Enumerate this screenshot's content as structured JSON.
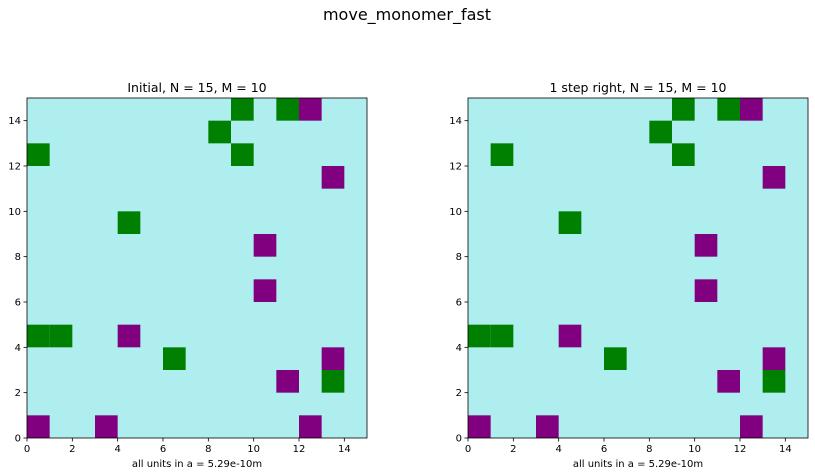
{
  "figure": {
    "suptitle": "move_monomer_fast",
    "background": "#ffffff"
  },
  "chart_data": [
    {
      "type": "heatmap",
      "title": "Initial, N = 15, M = 10",
      "xlabel": "all units in a = 5.29e-10m",
      "ylabel": "",
      "xlim": [
        0,
        15
      ],
      "ylim": [
        0,
        15
      ],
      "xticks": [
        0,
        2,
        4,
        6,
        8,
        10,
        12,
        14
      ],
      "yticks": [
        0,
        2,
        4,
        6,
        8,
        10,
        12,
        14
      ],
      "grid": false,
      "colors": {
        "empty": "#afeeee",
        "green": "#008000",
        "purple": "#800080"
      },
      "cells": [
        {
          "x": 9,
          "y": 14,
          "color": "green"
        },
        {
          "x": 11,
          "y": 14,
          "color": "green"
        },
        {
          "x": 12,
          "y": 14,
          "color": "purple"
        },
        {
          "x": 8,
          "y": 13,
          "color": "green"
        },
        {
          "x": 0,
          "y": 12,
          "color": "green"
        },
        {
          "x": 9,
          "y": 12,
          "color": "green"
        },
        {
          "x": 13,
          "y": 11,
          "color": "purple"
        },
        {
          "x": 4,
          "y": 9,
          "color": "green"
        },
        {
          "x": 10,
          "y": 8,
          "color": "purple"
        },
        {
          "x": 10,
          "y": 6,
          "color": "purple"
        },
        {
          "x": 0,
          "y": 4,
          "color": "green"
        },
        {
          "x": 1,
          "y": 4,
          "color": "green"
        },
        {
          "x": 4,
          "y": 4,
          "color": "purple"
        },
        {
          "x": 6,
          "y": 3,
          "color": "green"
        },
        {
          "x": 13,
          "y": 3,
          "color": "purple"
        },
        {
          "x": 11,
          "y": 2,
          "color": "purple"
        },
        {
          "x": 13,
          "y": 2,
          "color": "green"
        },
        {
          "x": 0,
          "y": 0,
          "color": "purple"
        },
        {
          "x": 3,
          "y": 0,
          "color": "purple"
        },
        {
          "x": 12,
          "y": 0,
          "color": "purple"
        }
      ]
    },
    {
      "type": "heatmap",
      "title": "1 step right, N = 15, M = 10",
      "xlabel": "all units in a = 5.29e-10m",
      "ylabel": "",
      "xlim": [
        0,
        15
      ],
      "ylim": [
        0,
        15
      ],
      "xticks": [
        0,
        2,
        4,
        6,
        8,
        10,
        12,
        14
      ],
      "yticks": [
        0,
        2,
        4,
        6,
        8,
        10,
        12,
        14
      ],
      "grid": false,
      "colors": {
        "empty": "#afeeee",
        "green": "#008000",
        "purple": "#800080"
      },
      "cells": [
        {
          "x": 9,
          "y": 14,
          "color": "green"
        },
        {
          "x": 11,
          "y": 14,
          "color": "green"
        },
        {
          "x": 12,
          "y": 14,
          "color": "purple"
        },
        {
          "x": 8,
          "y": 13,
          "color": "green"
        },
        {
          "x": 1,
          "y": 12,
          "color": "green"
        },
        {
          "x": 9,
          "y": 12,
          "color": "green"
        },
        {
          "x": 13,
          "y": 11,
          "color": "purple"
        },
        {
          "x": 4,
          "y": 9,
          "color": "green"
        },
        {
          "x": 10,
          "y": 8,
          "color": "purple"
        },
        {
          "x": 10,
          "y": 6,
          "color": "purple"
        },
        {
          "x": 0,
          "y": 4,
          "color": "green"
        },
        {
          "x": 1,
          "y": 4,
          "color": "green"
        },
        {
          "x": 4,
          "y": 4,
          "color": "purple"
        },
        {
          "x": 6,
          "y": 3,
          "color": "green"
        },
        {
          "x": 13,
          "y": 3,
          "color": "purple"
        },
        {
          "x": 11,
          "y": 2,
          "color": "purple"
        },
        {
          "x": 13,
          "y": 2,
          "color": "green"
        },
        {
          "x": 0,
          "y": 0,
          "color": "purple"
        },
        {
          "x": 3,
          "y": 0,
          "color": "purple"
        },
        {
          "x": 12,
          "y": 0,
          "color": "purple"
        }
      ]
    }
  ]
}
